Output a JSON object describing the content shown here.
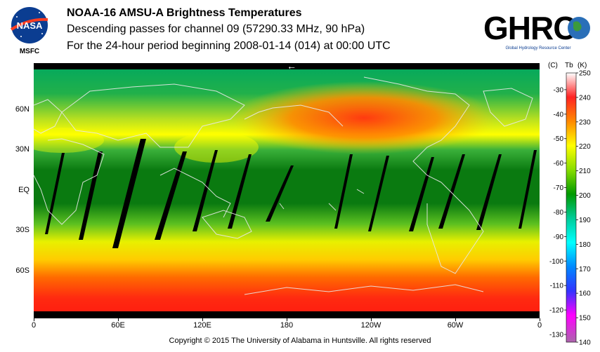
{
  "header": {
    "logo_left_text": "MSFC",
    "logo_left_badge": "NASA",
    "title": "NOAA-16 AMSU-A Brightness Temperatures",
    "subtitle": "Descending passes for channel 09 (57290.33 MHz, 90 hPa)",
    "period": "For the 24-hour period beginning 2008-01-14 (014) at 00:00 UTC",
    "logo_right_text": "GHRC",
    "logo_right_caption": "Global Hydrology Resource Center"
  },
  "map": {
    "x_ticks": [
      "0",
      "60E",
      "120E",
      "180",
      "120W",
      "60W",
      "0"
    ],
    "y_ticks": [
      "60N",
      "30N",
      "EQ",
      "30S",
      "60S"
    ],
    "arrow_glyph": "←"
  },
  "colorbar": {
    "header_c": "(C)",
    "header_tb": "Tb",
    "header_k": "(K)",
    "celsius_ticks": [
      "-30",
      "-40",
      "-50",
      "-60",
      "-70",
      "-80",
      "-90",
      "-100",
      "-110",
      "-120",
      "-130"
    ],
    "kelvin_ticks": [
      "250",
      "240",
      "230",
      "220",
      "210",
      "200",
      "190",
      "180",
      "170",
      "160",
      "150",
      "140"
    ],
    "color_stops": [
      "#ffffff",
      "#ff2222",
      "#ff8a00",
      "#ffff00",
      "#009900",
      "#00cc99",
      "#00ffff",
      "#0088ff",
      "#3333ff",
      "#ff00ff",
      "#aa66aa"
    ]
  },
  "footer": {
    "copyright": "Copyright © 2015 The University of Alabama in Huntsville.  All rights reserved"
  }
}
